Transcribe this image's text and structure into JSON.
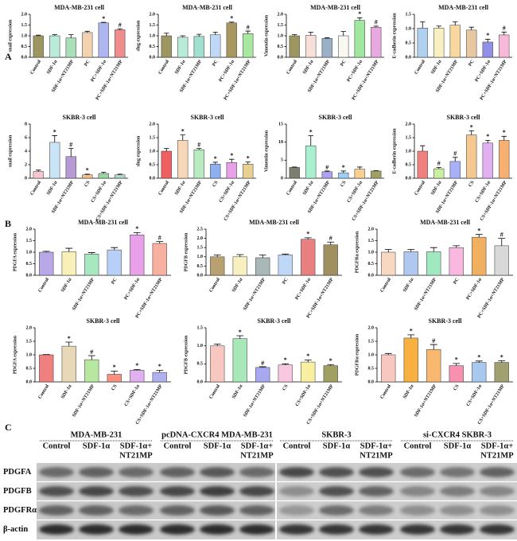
{
  "panels": [
    "A",
    "B",
    "C"
  ],
  "chart_data": [
    {
      "type": "bar",
      "title": "MDA-MB-231 cell",
      "y_label": "snail expression",
      "categories": [
        "Control",
        "SDF-1α",
        "SDF-1α+NT21MP",
        "PC",
        "PC+SDF-1α",
        "PC+SDF-1α+NT21MP"
      ],
      "values": [
        1.0,
        1.0,
        0.9,
        1.15,
        1.6,
        1.28
      ],
      "errors": [
        0.03,
        0.05,
        0.15,
        0.06,
        0.03,
        0.05
      ],
      "markers": [
        null,
        null,
        null,
        null,
        "*",
        "#"
      ],
      "colors": [
        "#9e9660",
        "#b8ecd8",
        "#a9dfb8",
        "#f2d2b0",
        "#aeb6f0",
        "#f08c8c"
      ],
      "ylim": [
        0,
        2
      ],
      "yticks": [
        {
          "value": 0,
          "label": "0.0"
        },
        {
          "value": 0.5,
          "label": "0.5"
        },
        {
          "value": 1,
          "label": "1.0"
        },
        {
          "value": 1.5,
          "label": "1.5"
        },
        {
          "value": 2,
          "label": "2.0"
        }
      ]
    },
    {
      "type": "bar",
      "title": "MDA-MB-231 cell",
      "y_label": "slug expression",
      "categories": [
        "Control",
        "SDF-1α",
        "SDF-1α+NT21MP",
        "PC",
        "PC+SDF-1α",
        "PC+SDF-1α+NT21MP"
      ],
      "values": [
        1.0,
        0.93,
        0.97,
        1.05,
        1.6,
        1.1
      ],
      "errors": [
        0.12,
        0.07,
        0.1,
        0.12,
        0.04,
        0.12
      ],
      "markers": [
        null,
        null,
        null,
        null,
        "*",
        "#"
      ],
      "colors": [
        "#9e9660",
        "#b8ecd8",
        "#9fe0d0",
        "#c0d8f8",
        "#a89860",
        "#a8e8a0"
      ],
      "ylim": [
        0,
        2
      ],
      "yticks": [
        {
          "value": 0,
          "label": "0.0"
        },
        {
          "value": 0.5,
          "label": "0.5"
        },
        {
          "value": 1,
          "label": "1.0"
        },
        {
          "value": 1.5,
          "label": "1.5"
        },
        {
          "value": 2,
          "label": "2.0"
        }
      ]
    },
    {
      "type": "bar",
      "title": "MDA-MB-231 cell",
      "y_label": "Vimentin expression",
      "categories": [
        "Control",
        "SDF-1α",
        "SDF-1α+NT21MP",
        "PC",
        "PC+SDF-1α",
        "PC+SDF-1α+NT21MP"
      ],
      "values": [
        1.0,
        1.02,
        0.88,
        1.0,
        1.72,
        1.4
      ],
      "errors": [
        0.05,
        0.15,
        0.03,
        0.2,
        0.12,
        0.05
      ],
      "markers": [
        null,
        null,
        null,
        null,
        "*",
        "#"
      ],
      "colors": [
        "#9e9660",
        "#f8e0d8",
        "#9ab0c8",
        "#f8f8f0",
        "#a0e8a0",
        "#e8a8e0"
      ],
      "ylim": [
        0,
        2
      ],
      "yticks": [
        {
          "value": 0,
          "label": "0.0"
        },
        {
          "value": 0.5,
          "label": "0.5"
        },
        {
          "value": 1,
          "label": "1.0"
        },
        {
          "value": 1.5,
          "label": "1.5"
        },
        {
          "value": 2,
          "label": "2.0"
        }
      ]
    },
    {
      "type": "bar",
      "title": "MDA-MB-231 cell",
      "y_label": "E-cadherin expression",
      "categories": [
        "Control",
        "SDF-1α",
        "SDF-1α+NT21MP",
        "PC",
        "PC+SDF-1α",
        "PC+SDF-1α+NT21MP"
      ],
      "values": [
        1.02,
        1.02,
        1.12,
        0.95,
        0.53,
        0.78
      ],
      "errors": [
        0.22,
        0.07,
        0.12,
        0.1,
        0.1,
        0.1
      ],
      "markers": [
        null,
        null,
        null,
        null,
        "*",
        "#"
      ],
      "colors": [
        "#b0d0f0",
        "#f8f0c0",
        "#f8d8a0",
        "#e8c8a0",
        "#9090e8",
        "#f8b8d8"
      ],
      "ylim": [
        0,
        1.5
      ],
      "yticks": [
        {
          "value": 0,
          "label": "0.0"
        },
        {
          "value": 0.5,
          "label": "0.5"
        },
        {
          "value": 1,
          "label": "1.0"
        },
        {
          "value": 1.5,
          "label": "1.5"
        }
      ]
    },
    {
      "type": "bar",
      "title": "SKBR-3 cell",
      "y_label": "snail expression",
      "categories": [
        "Control",
        "SDF-1α",
        "SDF-1α+NT21MP",
        "CS",
        "CS+SDF-1α",
        "CS+SDF-1α+NT21MP"
      ],
      "values": [
        1.0,
        5.3,
        3.2,
        0.5,
        0.7,
        0.5
      ],
      "errors": [
        0.2,
        1.0,
        1.2,
        0.1,
        0.2,
        0.1
      ],
      "markers": [
        null,
        "*",
        "#",
        "*",
        null,
        null
      ],
      "colors": [
        "#f7c6d0",
        "#c8e4f6",
        "#b69ad6",
        "#f5c08a",
        "#9ad6a0",
        "#b0d8c8"
      ],
      "ylim": [
        0,
        8
      ],
      "yticks": [
        0,
        2,
        4,
        6,
        8
      ]
    },
    {
      "type": "bar",
      "title": "SKBR-3 cell",
      "y_label": "slug expression",
      "categories": [
        "Control",
        "SDF-1α",
        "SDF-1α+NT21MP",
        "CS",
        "CS+SDF-1α",
        "CS+SDF-1α+NT21MP"
      ],
      "values": [
        1.0,
        1.4,
        1.05,
        0.52,
        0.58,
        0.52
      ],
      "errors": [
        0.1,
        0.2,
        0.05,
        0.07,
        0.12,
        0.08
      ],
      "markers": [
        null,
        "*",
        "#",
        "*",
        "*",
        "*"
      ],
      "colors": [
        "#f06060",
        "#f6d8b8",
        "#b8ecc0",
        "#8fb0f0",
        "#e8a0e8",
        "#e8d090"
      ],
      "ylim": [
        0,
        2
      ],
      "yticks": [
        {
          "value": 0,
          "label": "0.0"
        },
        {
          "value": 0.5,
          "label": "0.5"
        },
        {
          "value": 1,
          "label": "1.0"
        },
        {
          "value": 1.5,
          "label": "1.5"
        },
        {
          "value": 2,
          "label": "2.0"
        }
      ]
    },
    {
      "type": "bar",
      "title": "SKBR-3 cell",
      "y_label": "Vimentin expression",
      "categories": [
        "Control",
        "SDF-1α",
        "SDF-1α+NT21MP",
        "CS",
        "CS+SDF-1α",
        "CS+SDF-1α+NT21MP"
      ],
      "values": [
        3.0,
        9.0,
        1.8,
        1.5,
        2.5,
        2.0
      ],
      "errors": [
        0.1,
        2.8,
        0.2,
        0.5,
        0.6,
        0.1
      ],
      "markers": [
        null,
        "*",
        "#",
        "*",
        null,
        null
      ],
      "colors": [
        "#7d7d70",
        "#a8f0d0",
        "#b0a0f0",
        "#9ad0f8",
        "#f8d090",
        "#a0a060"
      ],
      "ylim": [
        0,
        15
      ],
      "yticks": [
        0,
        5,
        10,
        15
      ]
    },
    {
      "type": "bar",
      "title": "SKBR-3 cell",
      "y_label": "E-cadherin expression",
      "categories": [
        "Control",
        "SDF-1α",
        "SDF-1α+NT21MP",
        "CS",
        "CS+SDF-1α",
        "CS+SDF-1α+NT21MP"
      ],
      "values": [
        1.0,
        0.35,
        0.62,
        1.6,
        1.3,
        1.4
      ],
      "errors": [
        0.2,
        0.05,
        0.15,
        0.15,
        0.1,
        0.15
      ],
      "markers": [
        null,
        "#",
        "#",
        "*",
        "*",
        "*"
      ],
      "colors": [
        "#f08080",
        "#c8f0a0",
        "#a8b0f8",
        "#f4c890",
        "#e0b0f0",
        "#f8b070"
      ],
      "ylim": [
        0,
        2
      ],
      "yticks": [
        {
          "value": 0,
          "label": "0.0"
        },
        {
          "value": 0.5,
          "label": "0.5"
        },
        {
          "value": 1,
          "label": "1.0"
        },
        {
          "value": 1.5,
          "label": "1.5"
        },
        {
          "value": 2,
          "label": "2.0"
        }
      ]
    },
    {
      "type": "bar",
      "title": "MDA-MB-231 cell",
      "y_label": "PDGFA expression",
      "categories": [
        "Control",
        "SDF-1α",
        "SDF-1α+NT21MP",
        "PC",
        "PC+SDF-1α",
        "PC+SDF-1α+NT21MP"
      ],
      "values": [
        1.0,
        1.02,
        0.92,
        1.1,
        1.75,
        1.38
      ],
      "errors": [
        0.04,
        0.15,
        0.06,
        0.1,
        0.1,
        0.08
      ],
      "markers": [
        null,
        null,
        null,
        null,
        "*",
        "#"
      ],
      "colors": [
        "#b8a8e8",
        "#f8f0b8",
        "#a8e8c0",
        "#b8d0f8",
        "#e8a0e8",
        "#f8b0a0"
      ],
      "ylim": [
        0,
        2
      ],
      "yticks": [
        {
          "value": 0,
          "label": "0.0"
        },
        {
          "value": 0.5,
          "label": "0.5"
        },
        {
          "value": 1,
          "label": "1.0"
        },
        {
          "value": 1.5,
          "label": "1.5"
        },
        {
          "value": 2,
          "label": "2.0"
        }
      ]
    },
    {
      "type": "bar",
      "title": "MDA-MB-231 cell",
      "y_label": "PDGFB expression",
      "categories": [
        "Control",
        "SDF-1α",
        "SDF-1α+NT21MP",
        "PC",
        "PC+SDF-1α",
        "PC+SDF-1α+NT21MP"
      ],
      "values": [
        1.0,
        1.0,
        0.95,
        1.1,
        1.95,
        1.65
      ],
      "errors": [
        0.1,
        0.12,
        0.15,
        0.05,
        0.08,
        0.15
      ],
      "markers": [
        null,
        null,
        null,
        null,
        "*",
        "#"
      ],
      "colors": [
        "#b8a070",
        "#f8f0c0",
        "#a8b8b8",
        "#c0d8f8",
        "#e88080",
        "#a09060"
      ],
      "ylim": [
        0,
        2.5
      ],
      "yticks": [
        {
          "value": 0,
          "label": "0.0"
        },
        {
          "value": 0.5,
          "label": "0.5"
        },
        {
          "value": 1,
          "label": "1.0"
        },
        {
          "value": 1.5,
          "label": "1.5"
        },
        {
          "value": 2,
          "label": "2.0"
        },
        {
          "value": 2.5,
          "label": "2.5"
        }
      ]
    },
    {
      "type": "bar",
      "title": "MDA-MB-231 cell",
      "y_label": "PDGFRα expression",
      "categories": [
        "Control",
        "SDF-1α",
        "SDF-1α+NT21MP",
        "PC",
        "PC+SDF-1α",
        "PC+SDF-1α+NT21MP"
      ],
      "values": [
        1.0,
        1.02,
        1.02,
        1.2,
        1.65,
        1.28
      ],
      "errors": [
        0.12,
        0.1,
        0.18,
        0.08,
        0.12,
        0.32
      ],
      "markers": [
        null,
        null,
        null,
        null,
        "*",
        "#"
      ],
      "colors": [
        "#f8d8c0",
        "#b0c8f0",
        "#a0e8c0",
        "#f8b8e0",
        "#f0b060",
        "#d8d8d8"
      ],
      "ylim": [
        0,
        2
      ],
      "yticks": [
        {
          "value": 0,
          "label": "0.0"
        },
        {
          "value": 0.5,
          "label": "0.5"
        },
        {
          "value": 1,
          "label": "1.0"
        },
        {
          "value": 1.5,
          "label": "1.5"
        },
        {
          "value": 2,
          "label": "2.0"
        }
      ]
    },
    {
      "type": "bar",
      "title": "SKBR-3 cell",
      "y_label": "PDGFA expression",
      "categories": [
        "Control",
        "SDF-1α",
        "SDF-1α+NT21MP",
        "CS",
        "CS+SDF-1α",
        "CS+SDF-1α+NT21MP"
      ],
      "values": [
        1.0,
        1.32,
        0.82,
        0.28,
        0.43,
        0.35
      ],
      "errors": [
        0.01,
        0.15,
        0.15,
        0.12,
        0.03,
        0.08
      ],
      "markers": [
        null,
        "*",
        "#",
        "*",
        "*",
        "*"
      ],
      "colors": [
        "#f08080",
        "#e8d8b8",
        "#b8e8a0",
        "#f89080",
        "#e0b0f0",
        "#b0b0f0"
      ],
      "ylim": [
        0,
        2
      ],
      "yticks": [
        {
          "value": 0,
          "label": "0.0"
        },
        {
          "value": 0.5,
          "label": "0.5"
        },
        {
          "value": 1,
          "label": "1.0"
        },
        {
          "value": 1.5,
          "label": "1.5"
        },
        {
          "value": 2,
          "label": "2.0"
        }
      ]
    },
    {
      "type": "bar",
      "title": "SKBR-3 cell",
      "y_label": "PDGFB expression",
      "categories": [
        "Control",
        "SDF-1α",
        "SDF-1α+NT21MP",
        "CS",
        "CS+SDF-1α",
        "CS+SDF-1α+NT21MP"
      ],
      "values": [
        1.0,
        1.2,
        0.4,
        0.47,
        0.55,
        0.45
      ],
      "errors": [
        0.05,
        0.08,
        0.02,
        0.03,
        0.06,
        0.03
      ],
      "markers": [
        null,
        "*",
        "#",
        "*",
        "*",
        "*"
      ],
      "colors": [
        "#f8c8c0",
        "#a8e8b8",
        "#a8a8f0",
        "#f8c8e0",
        "#f8f0a0",
        "#a0a060"
      ],
      "ylim": [
        0,
        1.5
      ],
      "yticks": [
        {
          "value": 0,
          "label": "0.0"
        },
        {
          "value": 0.5,
          "label": "0.5"
        },
        {
          "value": 1,
          "label": "1.0"
        },
        {
          "value": 1.5,
          "label": "1.5"
        }
      ]
    },
    {
      "type": "bar",
      "title": "SKBR-3 cell",
      "y_label": "PDGFRα expression",
      "categories": [
        "Control",
        "SDF-1α",
        "SDF-1α+NT21MP",
        "CS",
        "CS+SDF-1α",
        "CS+SDF-1α+NT21MP"
      ],
      "values": [
        1.0,
        1.62,
        1.2,
        0.6,
        0.72,
        0.72
      ],
      "errors": [
        0.05,
        0.12,
        0.18,
        0.08,
        0.05,
        0.06
      ],
      "markers": [
        null,
        "*",
        "#",
        "*",
        "*",
        "*"
      ],
      "colors": [
        "#f8c8c0",
        "#f8b040",
        "#f8b870",
        "#f890b0",
        "#a8c8f0",
        "#a0a070"
      ],
      "ylim": [
        0,
        2
      ],
      "yticks": [
        {
          "value": 0,
          "label": "0.0"
        },
        {
          "value": 0.5,
          "label": "0.5"
        },
        {
          "value": 1,
          "label": "1.0"
        },
        {
          "value": 1.5,
          "label": "1.5"
        },
        {
          "value": 2,
          "label": "2.0"
        }
      ]
    }
  ],
  "blot": {
    "groups": [
      {
        "name": "MDA-MB-231",
        "lanes": [
          [
            "Control"
          ],
          [
            "SDF-1α"
          ],
          [
            "SDF-1α+",
            "NT21MP"
          ]
        ]
      },
      {
        "name": "pcDNA-CXCR4 MDA-MB-231",
        "lanes": [
          [
            "Control"
          ],
          [
            "SDF-1α"
          ],
          [
            "SDF-1α+",
            "NT21MP"
          ]
        ]
      },
      {
        "name": "SKBR-3",
        "lanes": [
          [
            "Control"
          ],
          [
            "SDF-1α"
          ],
          [
            "SDF-1α+",
            "NT21MP"
          ]
        ]
      },
      {
        "name": "si-CXCR4 SKBR-3",
        "lanes": [
          [
            "Control"
          ],
          [
            "SDF-1α"
          ],
          [
            "SDF-1α+",
            "NT21MP"
          ]
        ]
      }
    ],
    "rows": [
      "PDGFA",
      "PDGFB",
      "PDGFRα",
      "β-actin"
    ]
  }
}
